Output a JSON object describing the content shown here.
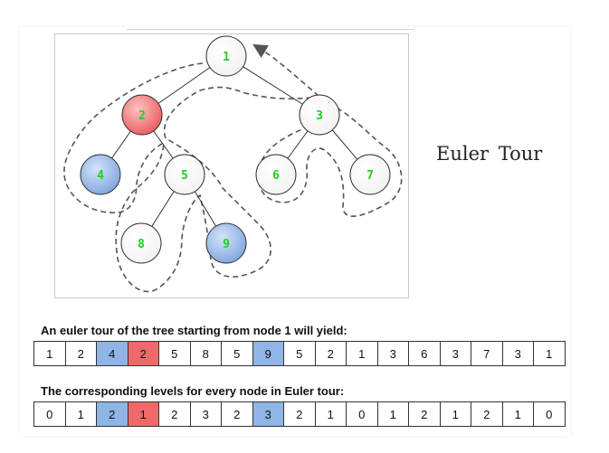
{
  "title": "Euler Tour",
  "tour_caption": "An euler tour of the tree starting from node 1 will yield:",
  "levels_caption": "The corresponding levels for every node in Euler tour:",
  "tour": [
    "1",
    "2",
    "4",
    "2",
    "5",
    "8",
    "5",
    "9",
    "5",
    "2",
    "1",
    "3",
    "6",
    "3",
    "7",
    "3",
    "1"
  ],
  "levels": [
    "0",
    "1",
    "2",
    "1",
    "2",
    "3",
    "2",
    "3",
    "2",
    "1",
    "0",
    "1",
    "2",
    "1",
    "2",
    "1",
    "0"
  ],
  "highlight_blue_indices": [
    2,
    7
  ],
  "highlight_red_indices": [
    3
  ],
  "colors": {
    "blue_cell": "#8fb4e6",
    "red_cell": "#ee6a6a",
    "node_label": "#1fcf1f",
    "node_red": "#f08a8a",
    "node_blue": "#8fb2e6"
  },
  "tree": {
    "nodes": [
      {
        "id": "1",
        "color": "white"
      },
      {
        "id": "2",
        "color": "red"
      },
      {
        "id": "3",
        "color": "white"
      },
      {
        "id": "4",
        "color": "blue"
      },
      {
        "id": "5",
        "color": "white"
      },
      {
        "id": "6",
        "color": "white"
      },
      {
        "id": "7",
        "color": "white"
      },
      {
        "id": "8",
        "color": "white"
      },
      {
        "id": "9",
        "color": "blue"
      }
    ],
    "edges": [
      [
        "1",
        "2"
      ],
      [
        "1",
        "3"
      ],
      [
        "2",
        "4"
      ],
      [
        "2",
        "5"
      ],
      [
        "5",
        "8"
      ],
      [
        "5",
        "9"
      ],
      [
        "3",
        "6"
      ],
      [
        "3",
        "7"
      ]
    ]
  }
}
